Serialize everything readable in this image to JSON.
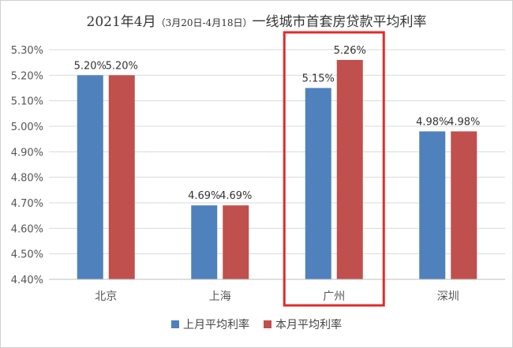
{
  "colors": {
    "series_1": "#4f81bd",
    "series_2": "#c0504d",
    "highlight_box": "#e02b2b",
    "grid": "#d9d9d9",
    "tick_text": "#555555",
    "label_text": "#333333"
  },
  "chart_data": {
    "type": "bar",
    "title": "2021年4月",
    "title_date_range": "（3月20日-4月18日）",
    "title_suffix": "一线城市首套房贷款平均利率",
    "categories": [
      "北京",
      "上海",
      "广州",
      "深圳"
    ],
    "series": [
      {
        "name": "上月平均利率",
        "values": [
          5.2,
          4.69,
          5.15,
          4.98
        ],
        "labels": [
          "5.20%",
          "4.69%",
          "5.15%",
          "4.98%"
        ]
      },
      {
        "name": "本月平均利率",
        "values": [
          5.2,
          4.69,
          5.26,
          4.98
        ],
        "labels": [
          "5.20%",
          "4.69%",
          "5.26%",
          "4.98%"
        ]
      }
    ],
    "yticks": [
      "4.40%",
      "4.50%",
      "4.60%",
      "4.70%",
      "4.80%",
      "4.90%",
      "5.00%",
      "5.10%",
      "5.20%",
      "5.30%"
    ],
    "ylim": [
      4.4,
      5.3
    ],
    "grid": true,
    "legend_position": "bottom",
    "highlight_category": "广州",
    "xlabel": "",
    "ylabel": ""
  }
}
